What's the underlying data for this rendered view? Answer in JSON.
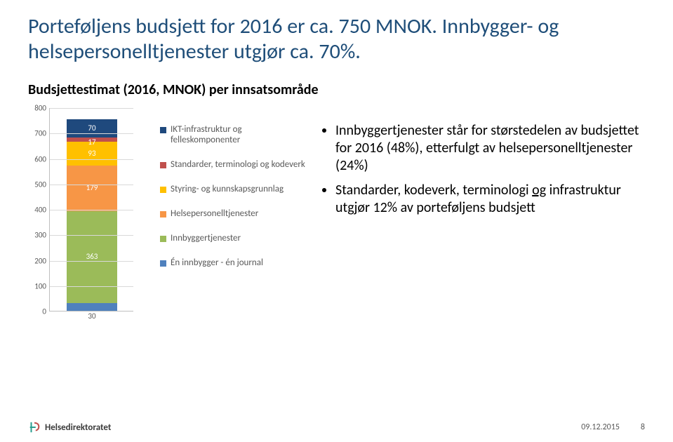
{
  "title": "Porteføljens budsjett for 2016 er ca. 750 MNOK. Innbygger- og helsepersonelltjenester utgjør ca. 70%.",
  "subtitle": "Budsjettestimat (2016, MNOK) per innsatsområde",
  "chart": {
    "type": "stacked-bar",
    "ylim": [
      0,
      800
    ],
    "ytick_step": 100,
    "yticks": [
      0,
      100,
      200,
      300,
      400,
      500,
      600,
      700,
      800
    ],
    "background_color": "#ffffff",
    "grid_color": "#d9d9d9",
    "axis_color": "#bfbfbf",
    "tick_fontsize": 11,
    "tick_color": "#595959",
    "bar_width_ratio": 0.6,
    "segments": [
      {
        "label": "Én innbygger - én journal",
        "value": 30,
        "color": "#4f81bd",
        "label_color": "#595959",
        "label_outside": true
      },
      {
        "label": "Innbyggertjenester",
        "value": 363,
        "color": "#9bbb59",
        "label_color": "#ffffff",
        "label_outside": false
      },
      {
        "label": "Helsepersonelltjenester",
        "value": 179,
        "color": "#f79646",
        "label_color": "#ffffff",
        "label_outside": false
      },
      {
        "label": "Styring- og kunnskapsgrunnlag",
        "value": 93,
        "color": "#ffc000",
        "label_color": "#ffffff",
        "label_outside": false
      },
      {
        "label": "Standarder, terminologi og kodeverk",
        "value": 17,
        "color": "#c0504d",
        "label_color": "#ffffff",
        "label_outside": false
      },
      {
        "label": "IKT-infrastruktur og felleskomponenter",
        "value": 70,
        "color": "#1f497d",
        "label_color": "#ffffff",
        "label_outside": false
      }
    ],
    "legend_order_top_down": [
      "IKT-infrastruktur og felleskomponenter",
      "Standarder, terminologi og kodeverk",
      "Styring- og kunnskapsgrunnlag",
      "Helsepersonelltjenester",
      "Innbyggertjenester",
      "Én innbygger - én journal"
    ],
    "legend_fontsize": 13,
    "legend_color": "#595959"
  },
  "bullets": [
    {
      "text_parts": [
        "Innbyggertjenester  står for størstedelen av budsjettet for 2016 (48%), etterfulgt av helsepersonelltjenester (24%)"
      ]
    },
    {
      "text_parts": [
        "Standarder, kodeverk, terminologi ",
        {
          "underline": true,
          "text": "og"
        },
        " infrastruktur utgjør 12% av porteføljens budsjett"
      ]
    }
  ],
  "footer": {
    "logo_text": "Helsedirektoratet",
    "logo_accent": "#2a9d8f",
    "logo_accent2": "#c0504d",
    "date": "09.12.2015",
    "page": "8"
  }
}
